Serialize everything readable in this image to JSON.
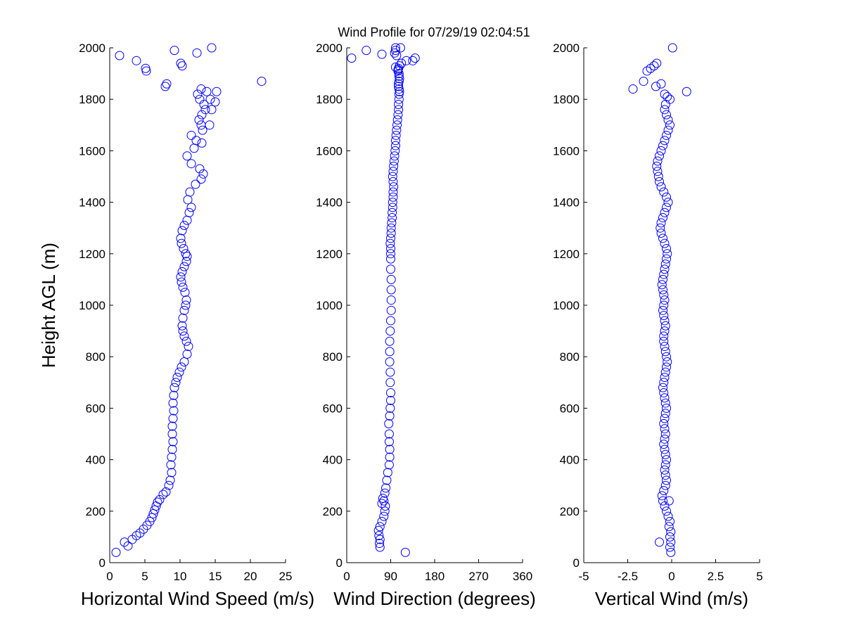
{
  "title": "Wind Profile for  07/29/19 02:04:51",
  "colors": {
    "marker": "#0000ff",
    "axis": "#000000",
    "background": "#ffffff"
  },
  "chart_data": [
    {
      "type": "scatter",
      "name": "horizontal-wind-speed",
      "xlabel": "Horizontal Wind Speed (m/s)",
      "ylabel": "Height AGL (m)",
      "xlim": [
        0,
        25
      ],
      "ylim": [
        0,
        2000
      ],
      "xticks": [
        0,
        5,
        10,
        15,
        20,
        25
      ],
      "xtick_labels": [
        "0",
        "5",
        "10",
        "15",
        "20",
        "25"
      ],
      "yticks": [
        0,
        200,
        400,
        600,
        800,
        1000,
        1200,
        1400,
        1600,
        1800,
        2000
      ],
      "ytick_labels": [
        "0",
        "200",
        "400",
        "600",
        "800",
        "1000",
        "1200",
        "1400",
        "1600",
        "1800",
        "2000"
      ],
      "grid": false,
      "x": [
        0.9,
        2.1,
        2.6,
        3.2,
        3.8,
        4.3,
        4.8,
        5.3,
        5.7,
        6.0,
        6.2,
        6.4,
        6.6,
        6.8,
        7.1,
        7.6,
        8.0,
        8.4,
        8.6,
        8.8,
        8.7,
        8.8,
        8.9,
        9.0,
        8.9,
        8.9,
        9.0,
        9.1,
        9.0,
        9.1,
        9.2,
        9.4,
        9.6,
        9.9,
        10.2,
        10.6,
        11.0,
        11.2,
        10.9,
        10.6,
        10.4,
        10.3,
        10.4,
        10.6,
        10.8,
        10.9,
        10.7,
        10.4,
        10.2,
        10.1,
        10.3,
        10.6,
        10.9,
        11.0,
        10.8,
        10.5,
        10.2,
        10.1,
        10.3,
        10.6,
        11.0,
        11.3,
        11.6,
        11.1,
        11.4,
        12.2,
        13.0,
        13.3,
        12.8,
        11.6,
        11.0,
        12.0,
        13.1,
        12.3,
        11.6,
        13.2,
        13.0,
        12.7,
        13.1,
        14.2,
        13.6,
        13.4,
        12.8,
        12.5,
        14.5,
        14.3,
        15.0,
        13.8,
        15.2,
        13.0,
        21.6,
        8.1,
        7.9,
        10.1,
        12.4,
        9.2,
        5.2,
        5.1,
        10.3,
        3.8,
        1.4,
        14.5
      ],
      "y": [
        40,
        80,
        65,
        90,
        105,
        115,
        130,
        145,
        160,
        175,
        190,
        205,
        220,
        235,
        245,
        265,
        275,
        300,
        320,
        350,
        380,
        410,
        440,
        470,
        500,
        530,
        560,
        590,
        620,
        650,
        680,
        700,
        720,
        740,
        760,
        780,
        810,
        840,
        860,
        880,
        900,
        920,
        950,
        980,
        1000,
        1020,
        1050,
        1070,
        1090,
        1110,
        1130,
        1150,
        1170,
        1190,
        1200,
        1220,
        1240,
        1260,
        1290,
        1310,
        1330,
        1360,
        1380,
        1410,
        1440,
        1470,
        1490,
        1510,
        1530,
        1550,
        1580,
        1610,
        1630,
        1640,
        1660,
        1680,
        1700,
        1720,
        1740,
        1700,
        1760,
        1780,
        1800,
        1820,
        1760,
        1800,
        1790,
        1830,
        1830,
        1840,
        1870,
        1860,
        1850,
        1940,
        1980,
        1990,
        1910,
        1920,
        1930,
        1950,
        1970,
        2000
      ]
    },
    {
      "type": "scatter",
      "name": "wind-direction",
      "xlabel": "Wind Direction (degrees)",
      "ylabel": "",
      "xlim": [
        0,
        360
      ],
      "ylim": [
        0,
        2000
      ],
      "xticks": [
        0,
        90,
        180,
        270,
        360
      ],
      "xtick_labels": [
        "0",
        "90",
        "180",
        "270",
        "360"
      ],
      "yticks": [
        0,
        200,
        400,
        600,
        800,
        1000,
        1200,
        1400,
        1600,
        1800,
        2000
      ],
      "ytick_labels": [
        "0",
        "200",
        "400",
        "600",
        "800",
        "1000",
        "1200",
        "1400",
        "1600",
        "1800",
        "2000"
      ],
      "grid": false,
      "x": [
        120,
        68,
        67,
        68,
        66,
        65,
        68,
        72,
        76,
        78,
        79,
        76,
        72,
        74,
        78,
        80,
        82,
        84,
        87,
        88,
        88,
        87,
        87,
        86,
        88,
        89,
        90,
        90,
        89,
        89,
        88,
        88,
        88,
        89,
        90,
        91,
        91,
        91,
        91,
        90,
        90,
        90,
        90,
        89,
        90,
        91,
        91,
        92,
        93,
        93,
        94,
        94,
        95,
        95,
        96,
        95,
        94,
        95,
        96,
        97,
        98,
        99,
        100,
        100,
        101,
        102,
        103,
        104,
        105,
        106,
        106,
        107,
        107,
        108,
        107,
        106,
        106,
        107,
        108,
        107,
        107,
        105,
        106,
        108,
        112,
        122,
        140,
        102,
        98,
        100,
        110,
        100,
        105,
        72,
        40,
        10,
        135,
        100
      ],
      "y": [
        40,
        60,
        75,
        90,
        105,
        125,
        140,
        160,
        180,
        200,
        220,
        240,
        230,
        250,
        270,
        290,
        320,
        350,
        380,
        410,
        440,
        470,
        500,
        540,
        570,
        600,
        630,
        660,
        700,
        740,
        780,
        820,
        860,
        900,
        940,
        980,
        1020,
        1060,
        1100,
        1140,
        1180,
        1200,
        1220,
        1240,
        1260,
        1280,
        1300,
        1320,
        1340,
        1360,
        1380,
        1400,
        1420,
        1440,
        1460,
        1480,
        1500,
        1520,
        1540,
        1560,
        1580,
        1600,
        1620,
        1640,
        1660,
        1680,
        1700,
        1720,
        1740,
        1760,
        1780,
        1800,
        1820,
        1830,
        1840,
        1850,
        1860,
        1870,
        1880,
        1890,
        1900,
        1910,
        1920,
        1930,
        1940,
        1950,
        1960,
        1970,
        1980,
        1990,
        2000,
        1925,
        1915,
        1975,
        1990,
        1960,
        1950,
        2000
      ]
    },
    {
      "type": "scatter",
      "name": "vertical-wind",
      "xlabel": "Vertical Wind (m/s)",
      "ylabel": "",
      "xlim": [
        -5,
        5
      ],
      "ylim": [
        0,
        2000
      ],
      "xticks": [
        -5,
        -2.5,
        0,
        2.5,
        5
      ],
      "xtick_labels": [
        "-5",
        "-2.5",
        "0",
        "2.5",
        "5"
      ],
      "yticks": [
        0,
        200,
        400,
        600,
        800,
        1000,
        1200,
        1400,
        1600,
        1800,
        2000
      ],
      "ytick_labels": [
        "0",
        "200",
        "400",
        "600",
        "800",
        "1000",
        "1200",
        "1400",
        "1600",
        "1800",
        "2000"
      ],
      "grid": false,
      "x": [
        -0.05,
        -0.1,
        -0.05,
        -0.1,
        -0.05,
        -0.15,
        -0.1,
        -0.2,
        -0.3,
        -0.4,
        -0.5,
        -0.55,
        -0.45,
        -0.35,
        -0.3,
        -0.35,
        -0.4,
        -0.35,
        -0.3,
        -0.35,
        -0.4,
        -0.45,
        -0.4,
        -0.35,
        -0.4,
        -0.45,
        -0.4,
        -0.35,
        -0.3,
        -0.35,
        -0.4,
        -0.45,
        -0.5,
        -0.45,
        -0.4,
        -0.35,
        -0.3,
        -0.25,
        -0.3,
        -0.35,
        -0.4,
        -0.45,
        -0.45,
        -0.4,
        -0.35,
        -0.4,
        -0.45,
        -0.5,
        -0.45,
        -0.4,
        -0.45,
        -0.5,
        -0.55,
        -0.5,
        -0.45,
        -0.4,
        -0.35,
        -0.3,
        -0.25,
        -0.3,
        -0.4,
        -0.5,
        -0.6,
        -0.65,
        -0.6,
        -0.5,
        -0.4,
        -0.3,
        -0.2,
        -0.3,
        -0.45,
        -0.6,
        -0.7,
        -0.75,
        -0.8,
        -0.85,
        -0.8,
        -0.7,
        -0.6,
        -0.5,
        -0.4,
        -0.3,
        -0.2,
        -0.1,
        -0.2,
        -0.3,
        -0.4,
        -0.35,
        -0.1,
        -0.25,
        -0.4,
        0.85,
        -0.6,
        -0.9,
        -2.2,
        -1.6,
        -1.4,
        -1.2,
        -1.0,
        -0.85,
        0.05,
        -0.7,
        -0.15
      ],
      "y": [
        40,
        60,
        80,
        100,
        120,
        140,
        160,
        180,
        200,
        220,
        240,
        260,
        280,
        300,
        320,
        340,
        360,
        380,
        400,
        420,
        440,
        460,
        480,
        500,
        520,
        540,
        560,
        580,
        600,
        620,
        640,
        660,
        680,
        700,
        720,
        740,
        760,
        780,
        800,
        820,
        840,
        860,
        880,
        900,
        920,
        940,
        960,
        980,
        1000,
        1020,
        1040,
        1060,
        1080,
        1100,
        1120,
        1140,
        1160,
        1180,
        1200,
        1220,
        1240,
        1260,
        1280,
        1300,
        1320,
        1340,
        1360,
        1380,
        1400,
        1420,
        1440,
        1460,
        1480,
        1500,
        1520,
        1540,
        1560,
        1580,
        1600,
        1620,
        1640,
        1660,
        1680,
        1700,
        1720,
        1740,
        1760,
        1780,
        1800,
        1810,
        1820,
        1830,
        1860,
        1850,
        1840,
        1870,
        1910,
        1920,
        1930,
        1940,
        2000,
        80,
        240
      ]
    }
  ]
}
